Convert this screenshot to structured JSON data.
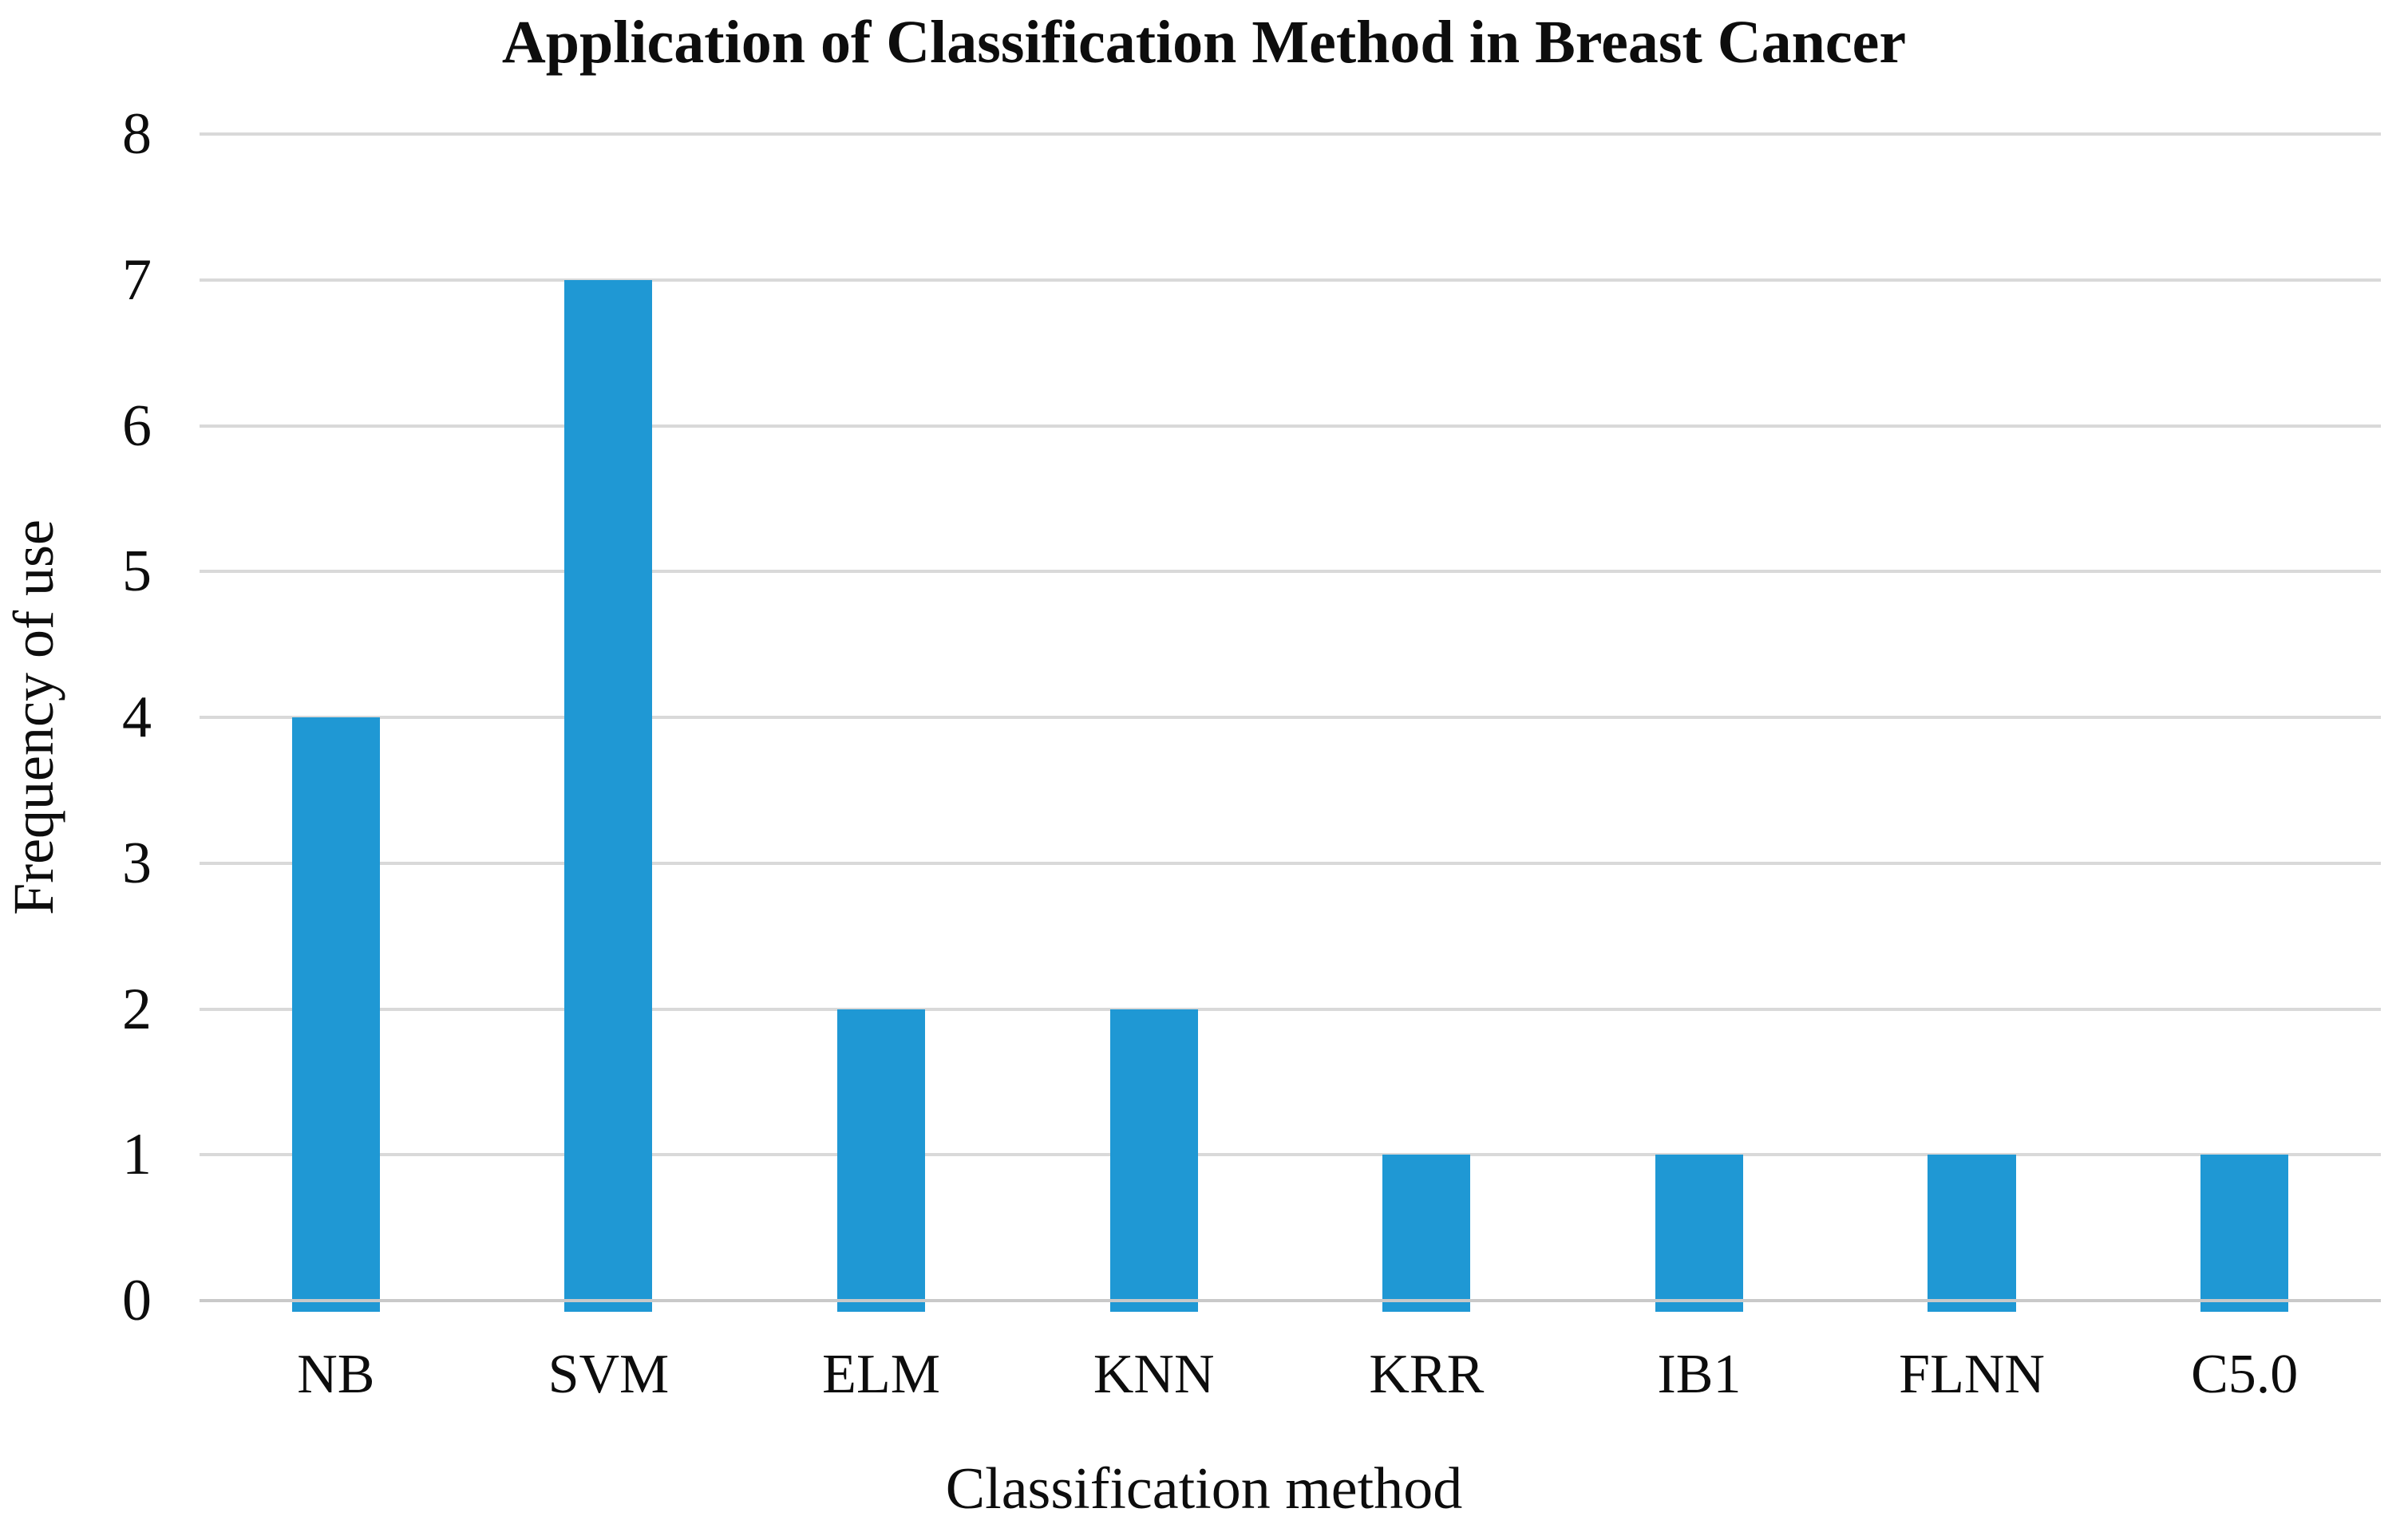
{
  "chart_data": {
    "type": "bar",
    "title": "Application of Classification Method in Breast Cancer",
    "xlabel": "Classification method",
    "ylabel": "Frequency of use",
    "categories": [
      "NB",
      "SVM",
      "ELM",
      "KNN",
      "KRR",
      "IB1",
      "FLNN",
      "C5.0"
    ],
    "values": [
      4,
      7,
      2,
      2,
      1,
      1,
      1,
      1
    ],
    "ylim": [
      0,
      8
    ],
    "yticks": [
      0,
      1,
      2,
      3,
      4,
      5,
      6,
      7,
      8
    ],
    "grid": "horizontal",
    "legend_position": "none",
    "bar_color": "#1f98d4",
    "gridline_color": "#d9d9d9",
    "axis_line_color": "#c9c9c9",
    "text_color": "#0d0d0d",
    "background_color": "#ffffff"
  }
}
